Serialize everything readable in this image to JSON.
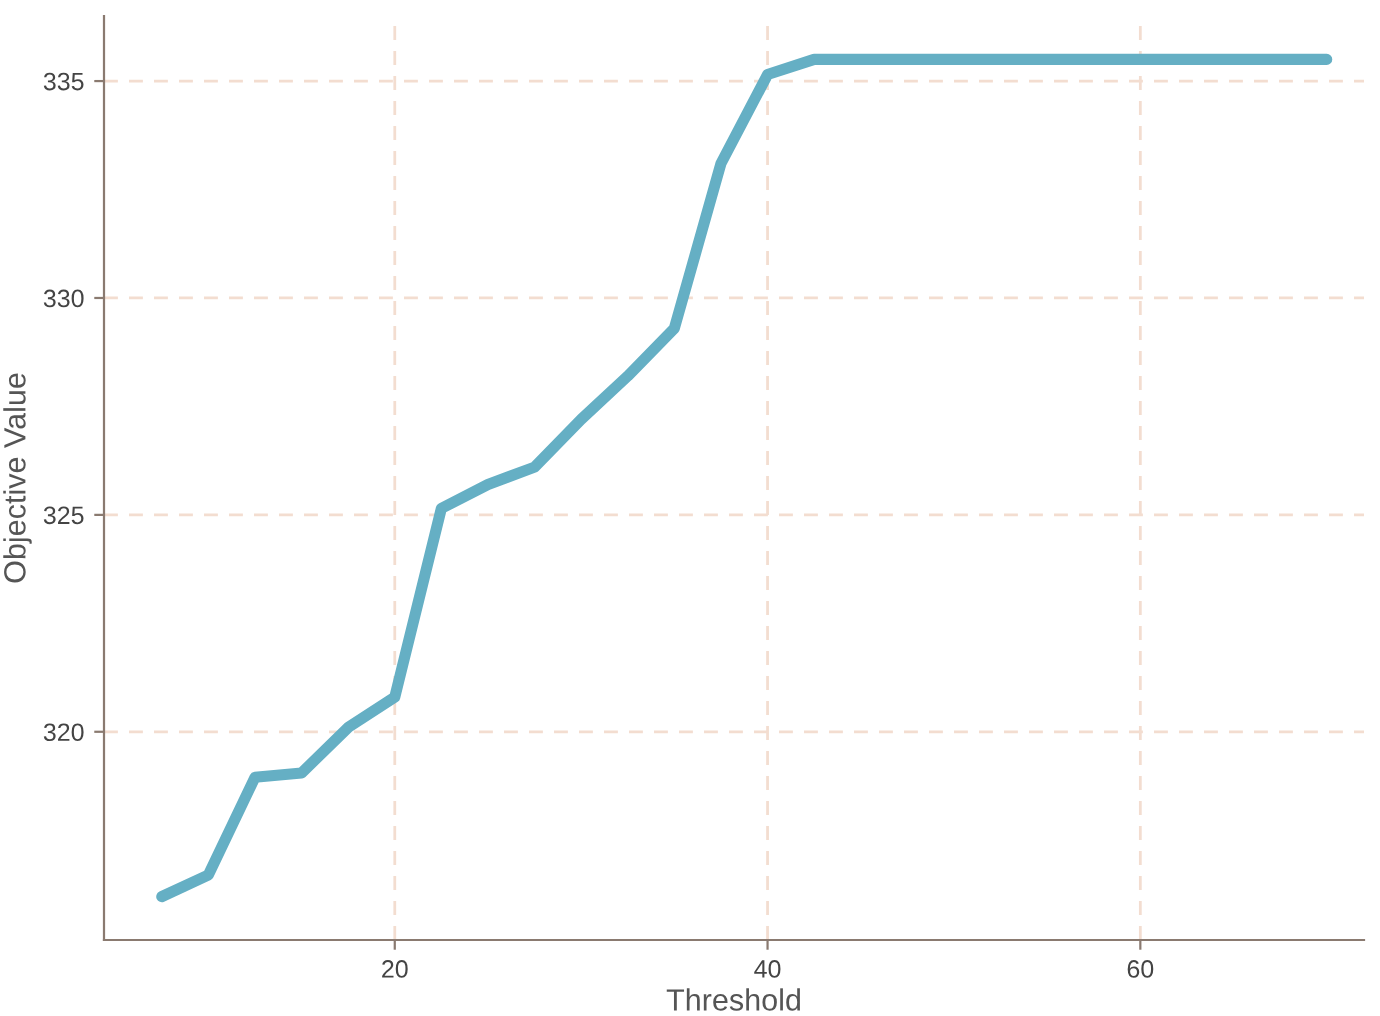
{
  "chart_data": {
    "type": "line",
    "xlabel": "Threshold",
    "ylabel": "Objective Value",
    "x": [
      7.5,
      10,
      12.5,
      15,
      17.5,
      20,
      22.5,
      25,
      27.5,
      30,
      32.5,
      35,
      37.5,
      40,
      42.5,
      45,
      50,
      55,
      60,
      65,
      70
    ],
    "series": [
      {
        "color": "#65afc4",
        "values": [
          316.2,
          316.7,
          318.95,
          319.05,
          320.1,
          320.8,
          325.15,
          325.7,
          326.1,
          327.2,
          328.2,
          329.3,
          333.1,
          335.15,
          335.5,
          335.5,
          335.5,
          335.5,
          335.5,
          335.5,
          335.5
        ]
      }
    ],
    "xlim": [
      4.4,
      72
    ],
    "ylim": [
      315.2,
      336.5
    ],
    "xticks": [
      20,
      40,
      60
    ],
    "yticks": [
      320,
      325,
      330,
      335
    ],
    "grid": true,
    "marker": "none",
    "line_style": "solid"
  }
}
